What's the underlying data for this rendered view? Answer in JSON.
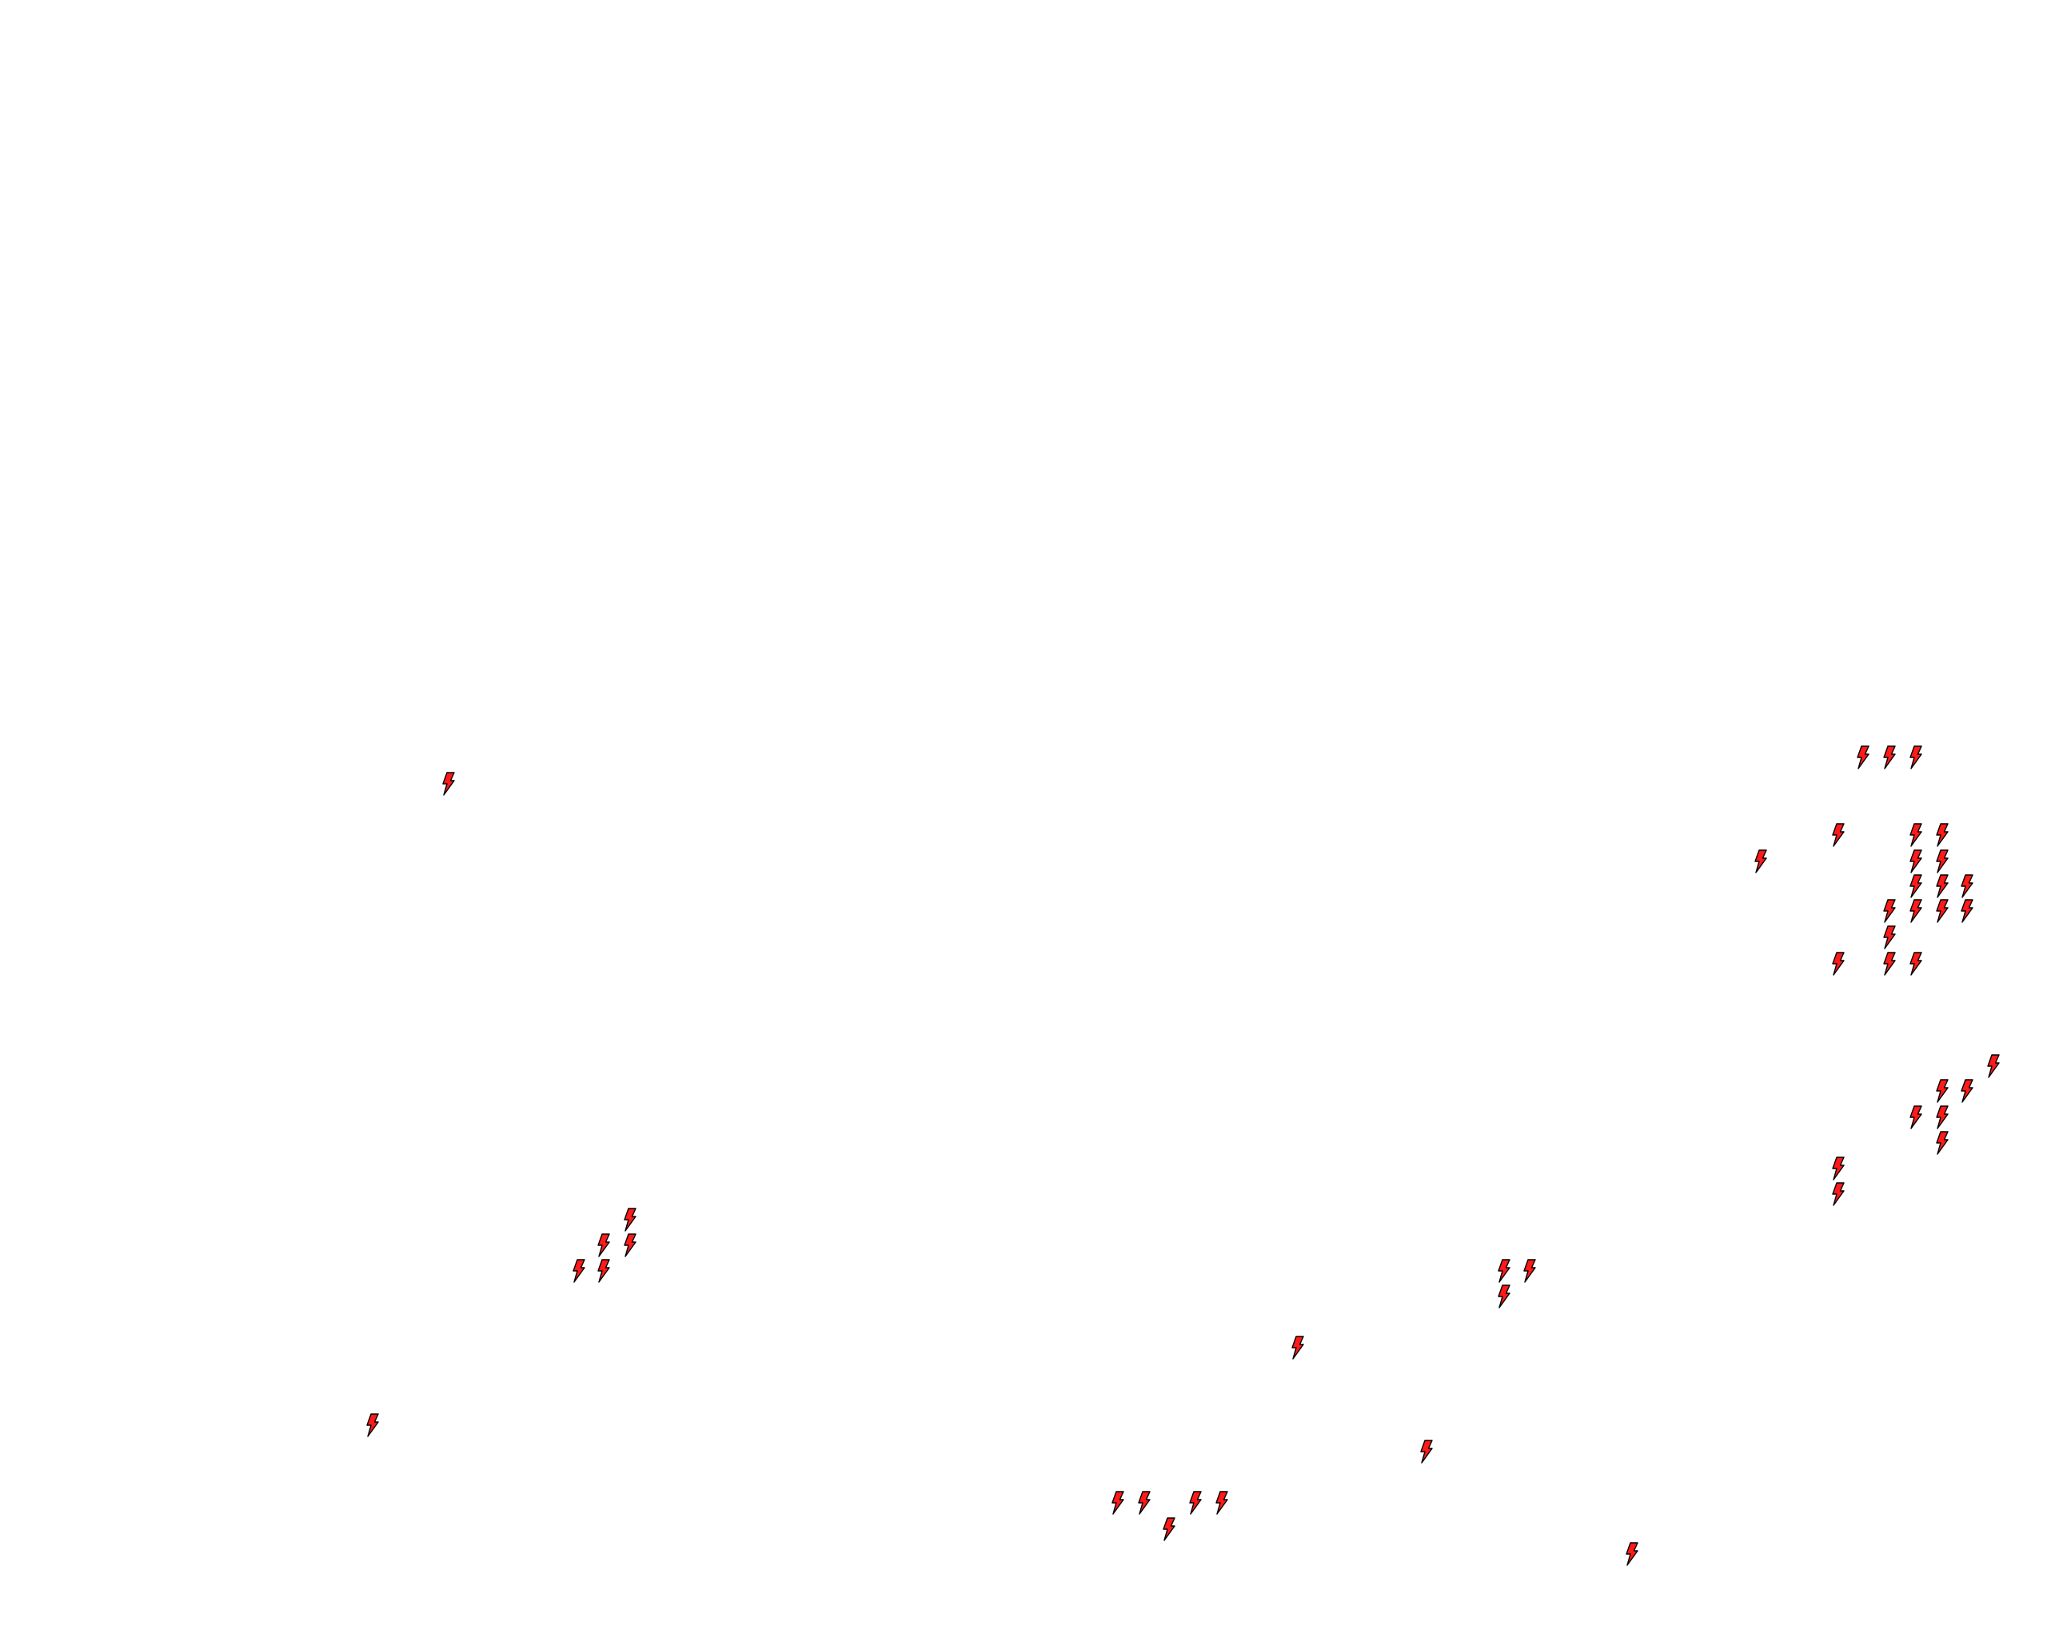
{
  "map": {
    "background": "#ffffff",
    "marker_icon": "lightning-bolt-icon",
    "marker_fill": "#ff1a1a",
    "marker_stroke": "#000000",
    "marker_count": 47
  }
}
